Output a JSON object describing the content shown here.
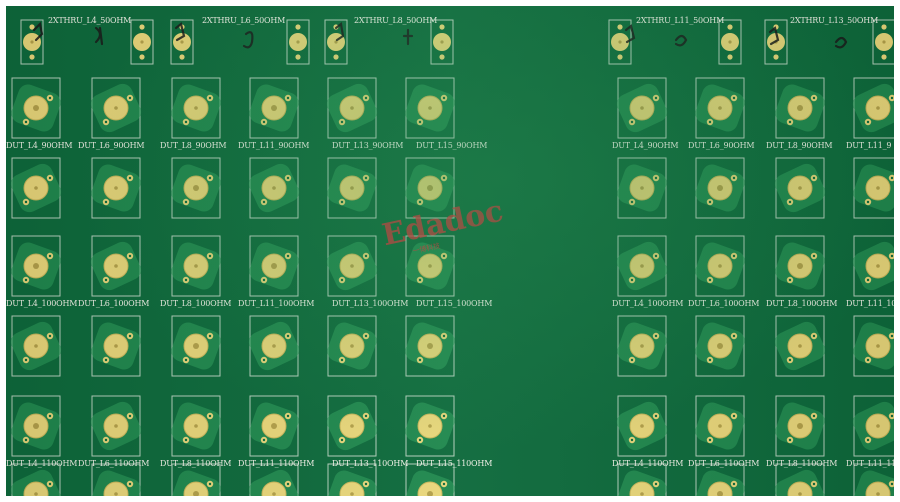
{
  "top_labels": [
    {
      "text": "2XTHRU_L4_50OHM"
    },
    {
      "text": "2XTHRU_L6_50OHM"
    },
    {
      "text": "2XTHRU_L8_50OHM"
    },
    {
      "text": "2XTHRU_L11_50OHM"
    },
    {
      "text": "2XTHRU_L13_50OHM"
    }
  ],
  "rows": [
    {
      "labels": [
        "DUT_L4_90OHM",
        "DUT_L6_90OHM",
        "DUT_L8_90OHM",
        "DUT_L11_90OHM",
        "DUT_L13_90OHM",
        "DUT_L15_90OHM"
      ],
      "right_labels": [
        "DUT_L4_90OHM",
        "DUT_L6_90OHM",
        "DUT_L8_90OHM",
        "DUT_L11_9"
      ]
    },
    {
      "labels": [
        "DUT_L4_100OHM",
        "DUT_L6_100OHM",
        "DUT_L8_100OHM",
        "DUT_L11_100OHM",
        "DUT_L13_100OHM",
        "DUT_L15_100OHM"
      ],
      "right_labels": [
        "DUT_L4_100OHM",
        "DUT_L6_100OHM",
        "DUT_L8_100OHM",
        "DUT_L11_10"
      ]
    },
    {
      "labels": [
        "DUT_L4_110OHM",
        "DUT_L6_110OHM",
        "DUT_L8_110OHM",
        "DUT_L11_110OHM",
        "DUT_L13_110OHM",
        "DUT_L15_110OHM"
      ],
      "right_labels": [
        "DUT_L4_110OHM",
        "DUT_L6_110OHM",
        "DUT_L8_110OHM",
        "DUT_L11_11"
      ]
    }
  ],
  "watermark": {
    "text": "Edadoc",
    "sub": "一博科技"
  },
  "colors": {
    "board": "#0e6a3c",
    "pad": "#e8d67a",
    "silkscreen": "#f2f2e8",
    "watermark": "#e0303a"
  }
}
